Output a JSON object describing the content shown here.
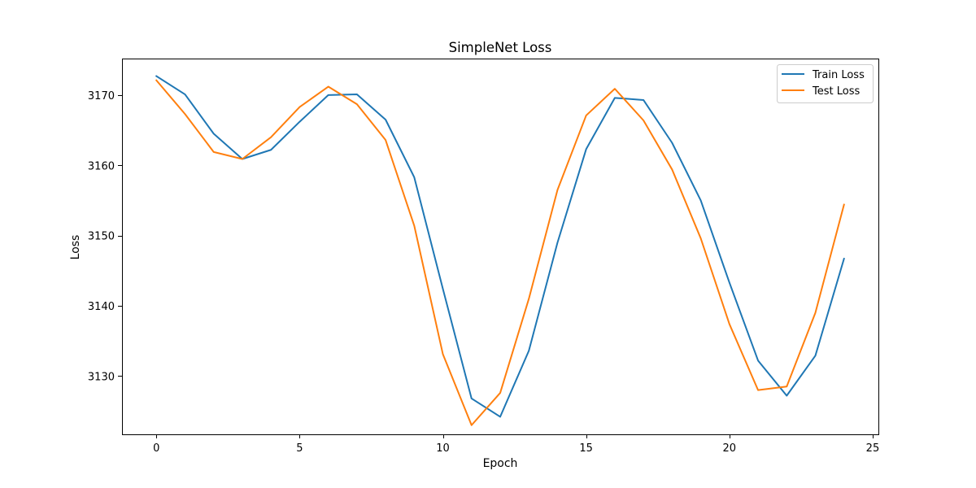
{
  "chart_data": {
    "type": "line",
    "title": "SimpleNet Loss",
    "xlabel": "Epoch",
    "ylabel": "Loss",
    "xlim": [
      -1.2,
      25.2
    ],
    "ylim": [
      3121.7,
      3175.2
    ],
    "xticks": [
      0,
      5,
      10,
      15,
      20,
      25
    ],
    "yticks": [
      3130,
      3140,
      3150,
      3160,
      3170
    ],
    "grid": false,
    "legend_position": "upper-right",
    "x": [
      0,
      1,
      2,
      3,
      4,
      5,
      6,
      7,
      8,
      9,
      10,
      11,
      12,
      13,
      14,
      15,
      16,
      17,
      18,
      19,
      20,
      21,
      22,
      23,
      24
    ],
    "series": [
      {
        "name": "Train Loss",
        "color": "#1f77b4",
        "values": [
          3172.7,
          3170.1,
          3164.5,
          3160.9,
          3162.2,
          3166.2,
          3170.0,
          3170.1,
          3166.5,
          3158.3,
          3142.4,
          3126.8,
          3124.2,
          3133.6,
          3149.0,
          3162.3,
          3169.6,
          3169.3,
          3163.2,
          3155.0,
          3143.3,
          3132.2,
          3127.2,
          3132.9,
          3146.7
        ]
      },
      {
        "name": "Test Loss",
        "color": "#ff7f0e",
        "values": [
          3172.1,
          3167.3,
          3161.9,
          3160.9,
          3164.0,
          3168.3,
          3171.2,
          3168.7,
          3163.6,
          3151.4,
          3133.1,
          3123.0,
          3127.6,
          3141.0,
          3156.5,
          3167.1,
          3170.9,
          3166.4,
          3159.4,
          3149.6,
          3137.4,
          3128.0,
          3128.5,
          3139.0,
          3154.4
        ]
      }
    ]
  }
}
